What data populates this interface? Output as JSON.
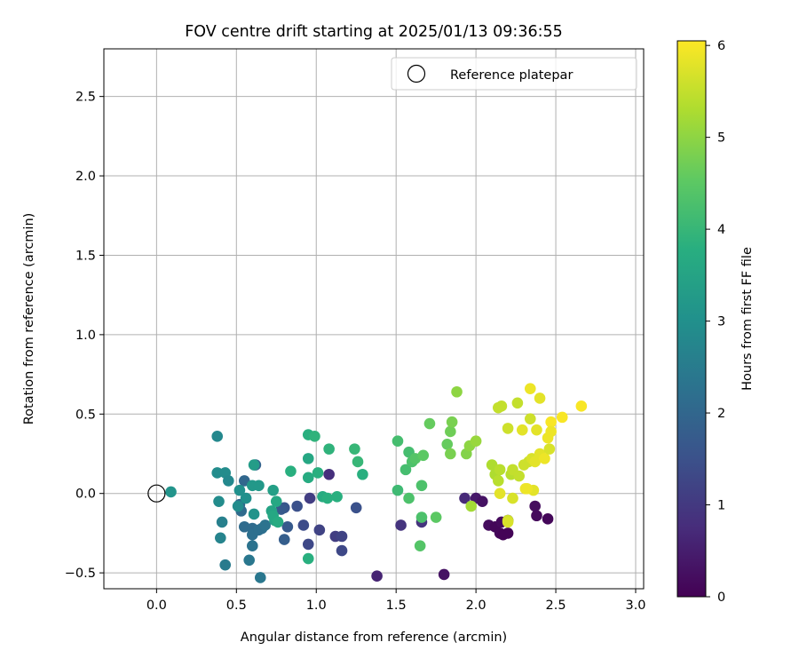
{
  "chart_data": {
    "type": "scatter",
    "title": "FOV centre drift starting at 2025/01/13 09:36:55",
    "xlabel": "Angular distance from reference (arcmin)",
    "ylabel": "Rotation from reference (arcmin)",
    "xlim": [
      -0.33,
      3.05
    ],
    "ylim": [
      -0.6,
      2.8
    ],
    "xticks": [
      0.0,
      0.5,
      1.0,
      1.5,
      2.0,
      2.5,
      3.0
    ],
    "xtick_labels": [
      "0.0",
      "0.5",
      "1.0",
      "1.5",
      "2.0",
      "2.5",
      "3.0"
    ],
    "yticks": [
      -0.5,
      0.0,
      0.5,
      1.0,
      1.5,
      2.0,
      2.5
    ],
    "ytick_labels": [
      "−0.5",
      "0.0",
      "0.5",
      "1.0",
      "1.5",
      "2.0",
      "2.5"
    ],
    "grid": true,
    "legend": {
      "position": "top-right",
      "label": "Reference platepar"
    },
    "reference_point": {
      "x": 0.0,
      "y": 0.0
    },
    "colorbar": {
      "label": "Hours from first FF file",
      "min": 0,
      "max": 6.05,
      "ticks": [
        0,
        1,
        2,
        3,
        4,
        5,
        6
      ],
      "tick_labels": [
        "0",
        "1",
        "2",
        "3",
        "4",
        "5",
        "6"
      ],
      "colormap": "viridis"
    },
    "points": [
      {
        "x": 1.93,
        "y": -0.03,
        "c": 0.7
      },
      {
        "x": 2.0,
        "y": -0.03,
        "c": 0.4
      },
      {
        "x": 2.04,
        "y": -0.05,
        "c": 0.3
      },
      {
        "x": 2.08,
        "y": -0.2,
        "c": 0.2
      },
      {
        "x": 2.12,
        "y": -0.21,
        "c": 0.1
      },
      {
        "x": 2.15,
        "y": -0.25,
        "c": 0.1
      },
      {
        "x": 2.17,
        "y": -0.26,
        "c": 0.05
      },
      {
        "x": 2.2,
        "y": -0.25,
        "c": 0.05
      },
      {
        "x": 2.16,
        "y": -0.18,
        "c": 0.15
      },
      {
        "x": 2.2,
        "y": -0.17,
        "c": 0.2
      },
      {
        "x": 2.37,
        "y": -0.08,
        "c": 0.2
      },
      {
        "x": 2.38,
        "y": -0.14,
        "c": 0.15
      },
      {
        "x": 2.45,
        "y": -0.16,
        "c": 0.1
      },
      {
        "x": 1.8,
        "y": -0.51,
        "c": 0.3
      },
      {
        "x": 1.38,
        "y": -0.52,
        "c": 0.6
      },
      {
        "x": 1.53,
        "y": -0.2,
        "c": 0.9
      },
      {
        "x": 1.66,
        "y": -0.18,
        "c": 0.9
      },
      {
        "x": 1.08,
        "y": 0.12,
        "c": 0.8
      },
      {
        "x": 1.25,
        "y": -0.09,
        "c": 1.5
      },
      {
        "x": 0.96,
        "y": -0.03,
        "c": 1.1
      },
      {
        "x": 1.02,
        "y": -0.23,
        "c": 1.2
      },
      {
        "x": 1.12,
        "y": -0.27,
        "c": 1.1
      },
      {
        "x": 1.16,
        "y": -0.27,
        "c": 1.2
      },
      {
        "x": 1.16,
        "y": -0.36,
        "c": 1.3
      },
      {
        "x": 0.95,
        "y": -0.32,
        "c": 1.3
      },
      {
        "x": 0.92,
        "y": -0.2,
        "c": 1.4
      },
      {
        "x": 0.88,
        "y": -0.08,
        "c": 1.5
      },
      {
        "x": 0.8,
        "y": -0.09,
        "c": 1.6
      },
      {
        "x": 0.78,
        "y": -0.1,
        "c": 1.7
      },
      {
        "x": 0.82,
        "y": -0.21,
        "c": 1.7
      },
      {
        "x": 0.8,
        "y": -0.29,
        "c": 1.8
      },
      {
        "x": 0.62,
        "y": 0.18,
        "c": 1.9
      },
      {
        "x": 0.55,
        "y": 0.08,
        "c": 2.0
      },
      {
        "x": 0.52,
        "y": -0.07,
        "c": 2.0
      },
      {
        "x": 0.53,
        "y": -0.11,
        "c": 2.1
      },
      {
        "x": 0.55,
        "y": -0.21,
        "c": 2.1
      },
      {
        "x": 0.6,
        "y": -0.22,
        "c": 2.1
      },
      {
        "x": 0.6,
        "y": -0.26,
        "c": 2.2
      },
      {
        "x": 0.64,
        "y": -0.23,
        "c": 2.2
      },
      {
        "x": 0.66,
        "y": -0.22,
        "c": 2.2
      },
      {
        "x": 0.68,
        "y": -0.2,
        "c": 2.3
      },
      {
        "x": 0.6,
        "y": -0.33,
        "c": 2.3
      },
      {
        "x": 0.58,
        "y": -0.42,
        "c": 2.4
      },
      {
        "x": 0.65,
        "y": -0.53,
        "c": 2.4
      },
      {
        "x": 0.43,
        "y": -0.45,
        "c": 2.5
      },
      {
        "x": 0.41,
        "y": -0.18,
        "c": 2.6
      },
      {
        "x": 0.4,
        "y": -0.28,
        "c": 2.7
      },
      {
        "x": 0.38,
        "y": 0.36,
        "c": 2.8
      },
      {
        "x": 0.38,
        "y": 0.13,
        "c": 2.9
      },
      {
        "x": 0.43,
        "y": 0.13,
        "c": 2.9
      },
      {
        "x": 0.45,
        "y": 0.08,
        "c": 2.8
      },
      {
        "x": 0.39,
        "y": -0.05,
        "c": 2.9
      },
      {
        "x": 0.51,
        "y": -0.08,
        "c": 2.9
      },
      {
        "x": 0.52,
        "y": 0.02,
        "c": 3.0
      },
      {
        "x": 0.56,
        "y": -0.03,
        "c": 3.0
      },
      {
        "x": 0.61,
        "y": -0.13,
        "c": 3.1
      },
      {
        "x": 0.6,
        "y": 0.05,
        "c": 3.2
      },
      {
        "x": 0.64,
        "y": 0.05,
        "c": 3.2
      },
      {
        "x": 0.09,
        "y": 0.01,
        "c": 3.1
      },
      {
        "x": 0.61,
        "y": 0.18,
        "c": 3.3
      },
      {
        "x": 0.72,
        "y": -0.11,
        "c": 3.5
      },
      {
        "x": 0.74,
        "y": -0.17,
        "c": 3.5
      },
      {
        "x": 0.73,
        "y": 0.02,
        "c": 3.4
      },
      {
        "x": 0.75,
        "y": -0.05,
        "c": 3.6
      },
      {
        "x": 0.73,
        "y": -0.14,
        "c": 3.6
      },
      {
        "x": 0.76,
        "y": -0.18,
        "c": 3.7
      },
      {
        "x": 0.84,
        "y": 0.14,
        "c": 3.8
      },
      {
        "x": 0.95,
        "y": 0.37,
        "c": 3.8
      },
      {
        "x": 0.99,
        "y": 0.36,
        "c": 3.9
      },
      {
        "x": 0.95,
        "y": 0.22,
        "c": 3.6
      },
      {
        "x": 0.95,
        "y": 0.1,
        "c": 3.7
      },
      {
        "x": 0.95,
        "y": -0.41,
        "c": 3.8
      },
      {
        "x": 1.01,
        "y": 0.13,
        "c": 3.8
      },
      {
        "x": 1.04,
        "y": -0.02,
        "c": 3.7
      },
      {
        "x": 1.07,
        "y": -0.03,
        "c": 3.8
      },
      {
        "x": 1.08,
        "y": 0.28,
        "c": 3.9
      },
      {
        "x": 1.13,
        "y": -0.02,
        "c": 3.8
      },
      {
        "x": 1.24,
        "y": 0.28,
        "c": 4.0
      },
      {
        "x": 1.26,
        "y": 0.2,
        "c": 4.0
      },
      {
        "x": 1.29,
        "y": 0.12,
        "c": 3.8
      },
      {
        "x": 1.51,
        "y": 0.33,
        "c": 4.2
      },
      {
        "x": 1.51,
        "y": 0.02,
        "c": 4.1
      },
      {
        "x": 1.56,
        "y": 0.15,
        "c": 4.2
      },
      {
        "x": 1.58,
        "y": 0.26,
        "c": 4.2
      },
      {
        "x": 1.6,
        "y": 0.2,
        "c": 4.3
      },
      {
        "x": 1.58,
        "y": -0.03,
        "c": 4.3
      },
      {
        "x": 1.66,
        "y": 0.05,
        "c": 4.3
      },
      {
        "x": 1.66,
        "y": -0.15,
        "c": 4.3
      },
      {
        "x": 1.65,
        "y": -0.33,
        "c": 4.4
      },
      {
        "x": 1.62,
        "y": 0.22,
        "c": 4.4
      },
      {
        "x": 1.67,
        "y": 0.24,
        "c": 4.5
      },
      {
        "x": 1.71,
        "y": 0.44,
        "c": 4.6
      },
      {
        "x": 1.75,
        "y": -0.15,
        "c": 4.5
      },
      {
        "x": 1.82,
        "y": 0.31,
        "c": 4.6
      },
      {
        "x": 1.84,
        "y": 0.39,
        "c": 4.7
      },
      {
        "x": 1.85,
        "y": 0.45,
        "c": 4.8
      },
      {
        "x": 1.84,
        "y": 0.25,
        "c": 4.8
      },
      {
        "x": 1.88,
        "y": 0.64,
        "c": 5.0
      },
      {
        "x": 1.94,
        "y": 0.25,
        "c": 4.9
      },
      {
        "x": 1.96,
        "y": 0.3,
        "c": 5.0
      },
      {
        "x": 2.0,
        "y": 0.33,
        "c": 5.1
      },
      {
        "x": 1.97,
        "y": -0.08,
        "c": 5.2
      },
      {
        "x": 2.1,
        "y": 0.18,
        "c": 5.3
      },
      {
        "x": 2.12,
        "y": 0.12,
        "c": 5.3
      },
      {
        "x": 2.14,
        "y": 0.08,
        "c": 5.4
      },
      {
        "x": 2.15,
        "y": 0.15,
        "c": 5.4
      },
      {
        "x": 2.14,
        "y": 0.54,
        "c": 5.5
      },
      {
        "x": 2.16,
        "y": 0.55,
        "c": 5.5
      },
      {
        "x": 2.2,
        "y": 0.41,
        "c": 5.6
      },
      {
        "x": 2.22,
        "y": 0.12,
        "c": 5.4
      },
      {
        "x": 2.23,
        "y": 0.15,
        "c": 5.5
      },
      {
        "x": 2.26,
        "y": 0.57,
        "c": 5.5
      },
      {
        "x": 2.27,
        "y": 0.11,
        "c": 5.5
      },
      {
        "x": 2.29,
        "y": 0.4,
        "c": 5.8
      },
      {
        "x": 2.3,
        "y": 0.18,
        "c": 5.6
      },
      {
        "x": 2.33,
        "y": 0.2,
        "c": 5.6
      },
      {
        "x": 2.34,
        "y": 0.47,
        "c": 5.6
      },
      {
        "x": 2.34,
        "y": 0.66,
        "c": 5.9
      },
      {
        "x": 2.35,
        "y": 0.22,
        "c": 5.7
      },
      {
        "x": 2.36,
        "y": 0.02,
        "c": 5.8
      },
      {
        "x": 2.37,
        "y": 0.2,
        "c": 5.8
      },
      {
        "x": 2.38,
        "y": 0.4,
        "c": 5.8
      },
      {
        "x": 2.4,
        "y": 0.6,
        "c": 5.8
      },
      {
        "x": 2.4,
        "y": 0.25,
        "c": 5.8
      },
      {
        "x": 2.43,
        "y": 0.22,
        "c": 5.9
      },
      {
        "x": 2.45,
        "y": 0.35,
        "c": 5.9
      },
      {
        "x": 2.46,
        "y": 0.28,
        "c": 5.7
      },
      {
        "x": 2.47,
        "y": 0.45,
        "c": 6.0
      },
      {
        "x": 2.47,
        "y": 0.39,
        "c": 5.9
      },
      {
        "x": 2.54,
        "y": 0.48,
        "c": 6.0
      },
      {
        "x": 2.66,
        "y": 0.55,
        "c": 6.0
      },
      {
        "x": 2.31,
        "y": 0.03,
        "c": 5.9
      },
      {
        "x": 2.32,
        "y": 0.03,
        "c": 5.9
      },
      {
        "x": 2.15,
        "y": 0.0,
        "c": 5.8
      },
      {
        "x": 2.23,
        "y": -0.03,
        "c": 5.7
      },
      {
        "x": 2.2,
        "y": -0.17,
        "c": 5.6
      },
      {
        "x": 2.2,
        "y": -0.18,
        "c": 5.7
      }
    ]
  }
}
